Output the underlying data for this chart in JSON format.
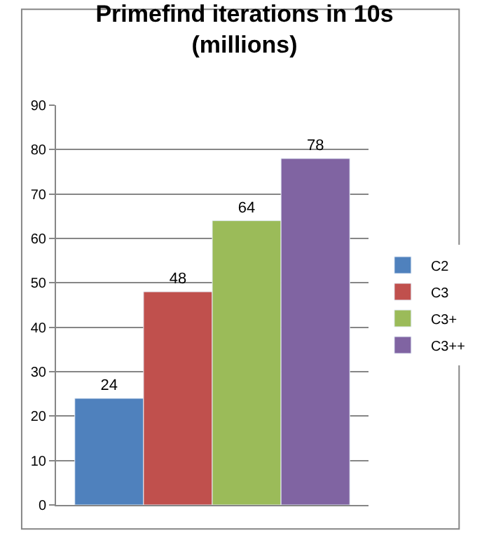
{
  "chart_data": {
    "type": "bar",
    "title": "Primefind iterations in 10s\n(millions)",
    "categories": [
      null
    ],
    "series": [
      {
        "name": "C2",
        "color": "#4f81bd",
        "values": [
          24
        ]
      },
      {
        "name": "C3",
        "color": "#c0504d",
        "values": [
          48
        ]
      },
      {
        "name": "C3+",
        "color": "#9bbb59",
        "values": [
          64
        ]
      },
      {
        "name": "C3++",
        "color": "#8064a2",
        "values": [
          78
        ]
      }
    ],
    "ylim": [
      0,
      90
    ],
    "yticks": [
      0,
      10,
      20,
      30,
      40,
      50,
      60,
      70,
      80,
      90
    ],
    "grid": "y",
    "legend": "right",
    "data_labels": true
  }
}
